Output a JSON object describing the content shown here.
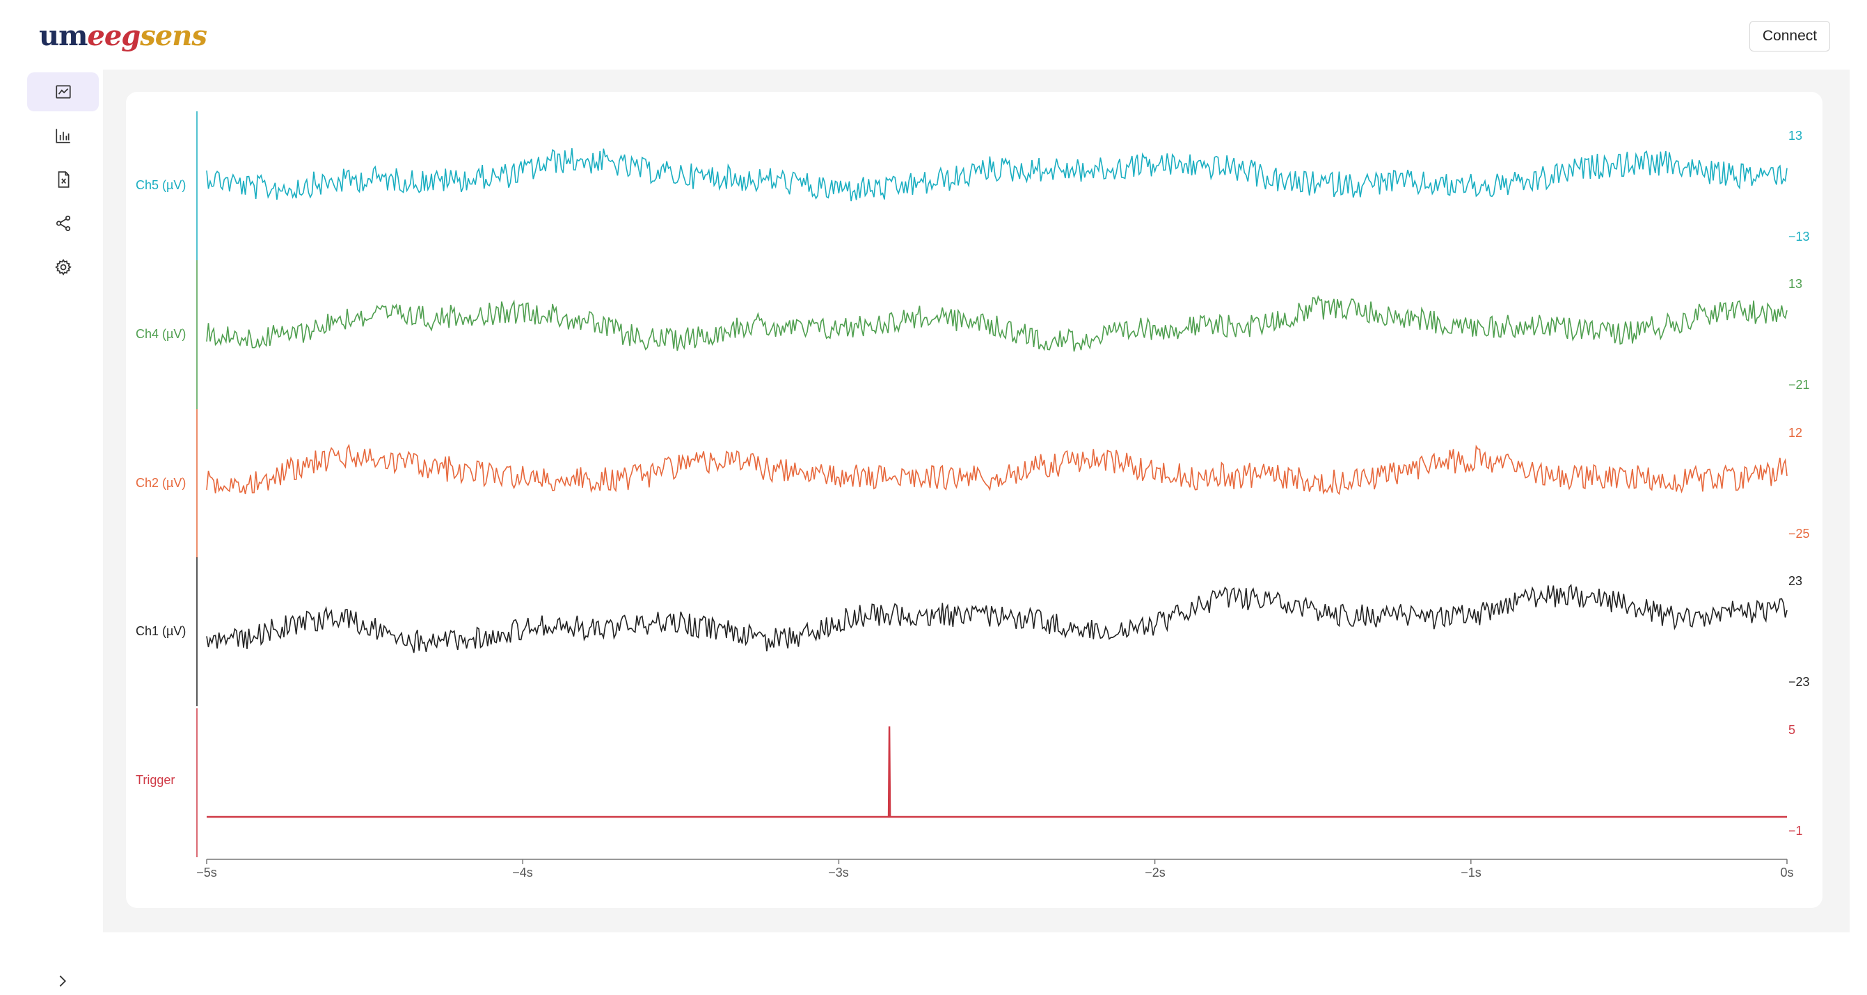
{
  "header": {
    "logo": {
      "part1": "um",
      "part2": "eeg",
      "part3": "sens"
    },
    "connect_label": "Connect"
  },
  "sidebar": {
    "items": [
      {
        "icon": "line-chart-icon",
        "active": true
      },
      {
        "icon": "bar-chart-icon",
        "active": false
      },
      {
        "icon": "file-export-icon",
        "active": false
      },
      {
        "icon": "share-nodes-icon",
        "active": false
      },
      {
        "icon": "gear-icon",
        "active": false
      }
    ],
    "expand_icon": "chevron-right-icon"
  },
  "colors": {
    "ch5": "#1aaec1",
    "ch4": "#4f9f4f",
    "ch2": "#e7683c",
    "ch1": "#222222",
    "trigger": "#cf3a46",
    "active_nav_bg": "#eeebfb"
  },
  "plot": {
    "channels": [
      {
        "label": "Ch5 (µV)",
        "scale_max": "13",
        "scale_min": "−13"
      },
      {
        "label": "Ch4 (µV)",
        "scale_max": "13",
        "scale_min": "−21"
      },
      {
        "label": "Ch2 (µV)",
        "scale_max": "12",
        "scale_min": "−25"
      },
      {
        "label": "Ch1 (µV)",
        "scale_max": "23",
        "scale_min": "−23"
      },
      {
        "label": "Trigger",
        "scale_max": "5",
        "scale_min": "−1"
      }
    ],
    "x_ticks": [
      "−5s",
      "−4s",
      "−3s",
      "−2s",
      "−1s",
      "0s"
    ],
    "trigger_time_s": -2.84
  }
}
